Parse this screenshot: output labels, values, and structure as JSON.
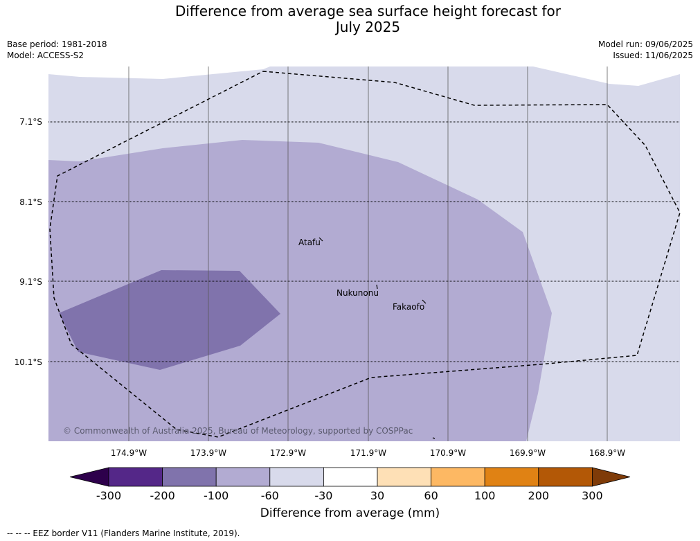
{
  "title_line1": "Difference from average sea surface height forecast for",
  "title_line2": "July 2025",
  "meta": {
    "base_period": "Base period: 1981-2018",
    "model": "Model: ACCESS-S2",
    "model_run": "Model run: 09/06/2025",
    "issued": "Issued: 11/06/2025"
  },
  "map": {
    "lat_labels": [
      "7.1°S",
      "8.1°S",
      "9.1°S",
      "10.1°S"
    ],
    "lon_labels": [
      "174.9°W",
      "173.9°W",
      "172.9°W",
      "171.9°W",
      "170.9°W",
      "169.9°W",
      "168.9°W"
    ],
    "places": [
      "Atafu",
      "Nukunonu",
      "Fakaofo"
    ],
    "copyright": "© Commonwealth of Australia 2025, Bureau of Meteorology, supported by COSPPac"
  },
  "colorbar": {
    "label": "Difference from average (mm)",
    "ticks": [
      "-300",
      "-200",
      "-100",
      "-60",
      "-30",
      "30",
      "60",
      "100",
      "200",
      "300"
    ],
    "colors": [
      "#2d004b",
      "#542788",
      "#8073ac",
      "#b2abd2",
      "#d8daeb",
      "#ffffff",
      "#fee0b6",
      "#fdb863",
      "#e08214",
      "#b35806",
      "#7f3b08"
    ]
  },
  "footnote": "--  --  -- EEZ border V11 (Flanders Marine Institute, 2019)."
}
